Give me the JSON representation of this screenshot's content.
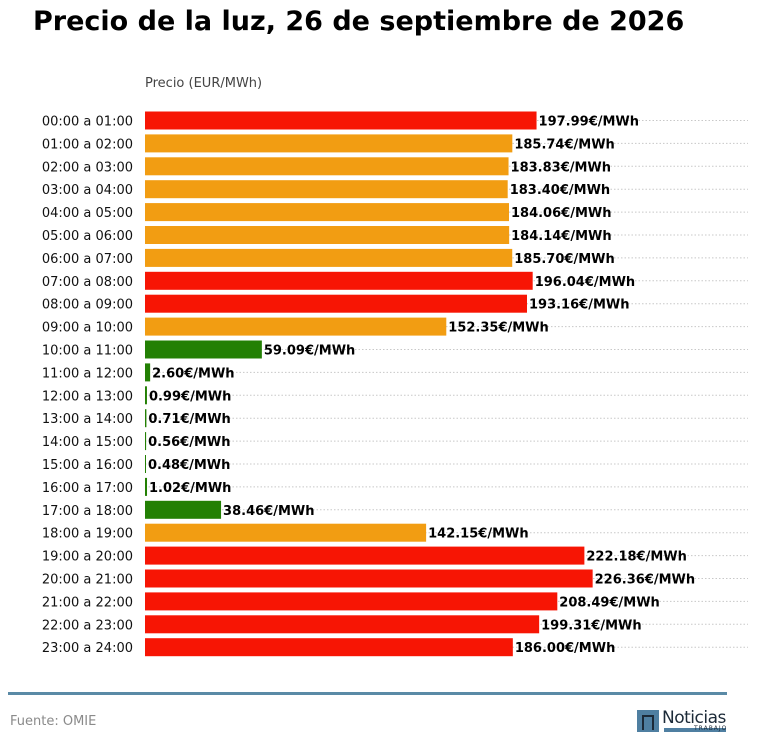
{
  "title": "Precio de la luz, 26 de septiembre de 2026",
  "source": "Fuente: OMIE",
  "logo": {
    "name": "Noticias",
    "subtitle": "TRABAJO"
  },
  "colors": {
    "high": "#f71504",
    "mid": "#f29d12",
    "low": "#238004",
    "footer_line": "#5a8aa6"
  },
  "chart_data": {
    "type": "bar",
    "orientation": "horizontal",
    "ylabel": "Precio (EUR/MWh)",
    "value_suffix": "€/MWh",
    "xlim": [
      0,
      260
    ],
    "grid": true,
    "categories": [
      "00:00 a 01:00",
      "01:00 a 02:00",
      "02:00 a 03:00",
      "03:00 a 04:00",
      "04:00 a 05:00",
      "05:00 a 06:00",
      "06:00 a 07:00",
      "07:00 a 08:00",
      "08:00 a 09:00",
      "09:00 a 10:00",
      "10:00 a 11:00",
      "11:00 a 12:00",
      "12:00 a 13:00",
      "13:00 a 14:00",
      "14:00 a 15:00",
      "15:00 a 16:00",
      "16:00 a 17:00",
      "17:00 a 18:00",
      "18:00 a 19:00",
      "19:00 a 20:00",
      "20:00 a 21:00",
      "21:00 a 22:00",
      "22:00 a 23:00",
      "23:00 a 24:00"
    ],
    "values": [
      197.99,
      185.74,
      183.83,
      183.4,
      184.06,
      184.14,
      185.7,
      196.04,
      193.16,
      152.35,
      59.09,
      2.6,
      0.99,
      0.71,
      0.56,
      0.48,
      1.02,
      38.46,
      142.15,
      222.18,
      226.36,
      208.49,
      199.31,
      186.0
    ],
    "levels": [
      "high",
      "mid",
      "mid",
      "mid",
      "mid",
      "mid",
      "mid",
      "high",
      "high",
      "mid",
      "low",
      "low",
      "low",
      "low",
      "low",
      "low",
      "low",
      "low",
      "mid",
      "high",
      "high",
      "high",
      "high",
      "high"
    ]
  }
}
